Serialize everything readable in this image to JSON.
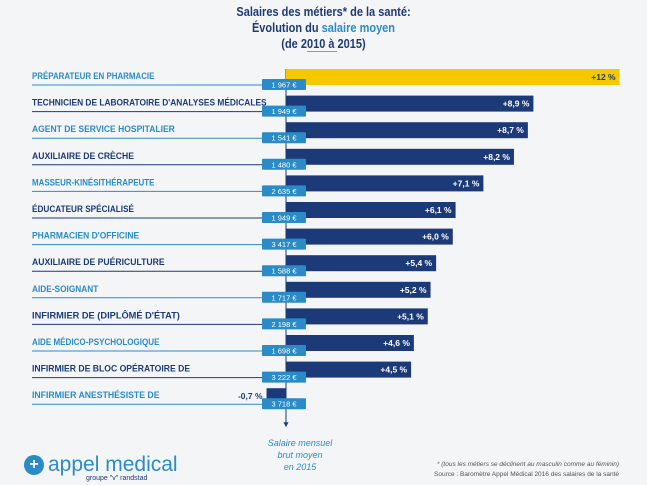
{
  "title": {
    "line1": "Salaires des métiers* de la santé:",
    "line2_a": "Évolution du ",
    "line2_b": "salaire moyen",
    "line3": "(de 2010 à 2015)"
  },
  "chart_data": {
    "type": "bar",
    "orientation": "horizontal",
    "title": "Salaires des métiers* de la santé: Évolution du salaire moyen (de 2010 à 2015)",
    "categories": [
      "PRÉPARATEUR EN PHARMACIE",
      "TECHNICIEN DE LABORATOIRE D'ANALYSES MÉDICALES",
      "AGENT DE SERVICE HOSPITALIER",
      "AUXILIAIRE DE CRÈCHE",
      "MASSEUR-KINÉSITHÉRAPEUTE",
      "ÉDUCATEUR SPÉCIALISÉ",
      "PHARMACIEN D'OFFICINE",
      "AUXILIAIRE DE PUÉRICULTURE",
      "AIDE-SOIGNANT",
      "INFIRMIER DE (DIPLÔMÉ D'ÉTAT)",
      "AIDE MÉDICO-PSYCHOLOGIQUE",
      "INFIRMIER DE BLOC OPÉRATOIRE DE",
      "INFIRMIER ANESTHÉSISTE DE"
    ],
    "values": [
      12,
      8.9,
      8.7,
      8.2,
      7.1,
      6.1,
      6.0,
      5.4,
      5.2,
      5.1,
      4.6,
      4.5,
      -0.7
    ],
    "value_labels": [
      "+12 %",
      "+8,9 %",
      "+8,7 %",
      "+8,2 %",
      "+7,1 %",
      "+6,1 %",
      "+6,0 %",
      "+5,4 %",
      "+5,2 %",
      "+5,1 %",
      "+4,6 %",
      "+4,5 %",
      "-0,7 %"
    ],
    "salaries": [
      "1 967 €",
      "1 949 €",
      "1 541 €",
      "1 480 €",
      "2 635 €",
      "1 949 €",
      "3 417 €",
      "1 588 €",
      "1 717 €",
      "2 198 €",
      "1 698 €",
      "3 222 €",
      "3 718 €"
    ],
    "salary_axis_label": "Salaire mensuel brut moyen en 2015",
    "colors": {
      "highlight": "#f5c800",
      "bar": "#1d3a78",
      "badge": "#2a8bc7",
      "label_light": "#2a8bc7",
      "label_dark": "#1d3a78"
    }
  },
  "note": {
    "line1": "Salaire mensuel brut moyen",
    "line2": "en 2015"
  },
  "logo": {
    "name": "appel medical",
    "group": "groupe \"v\" randstad"
  },
  "footer": {
    "note": "* (tous les métiers se déclinent au masculin comme au féminin)",
    "source": "Source : Baromètre Appel Médical 2016 des salaires de la santé"
  }
}
